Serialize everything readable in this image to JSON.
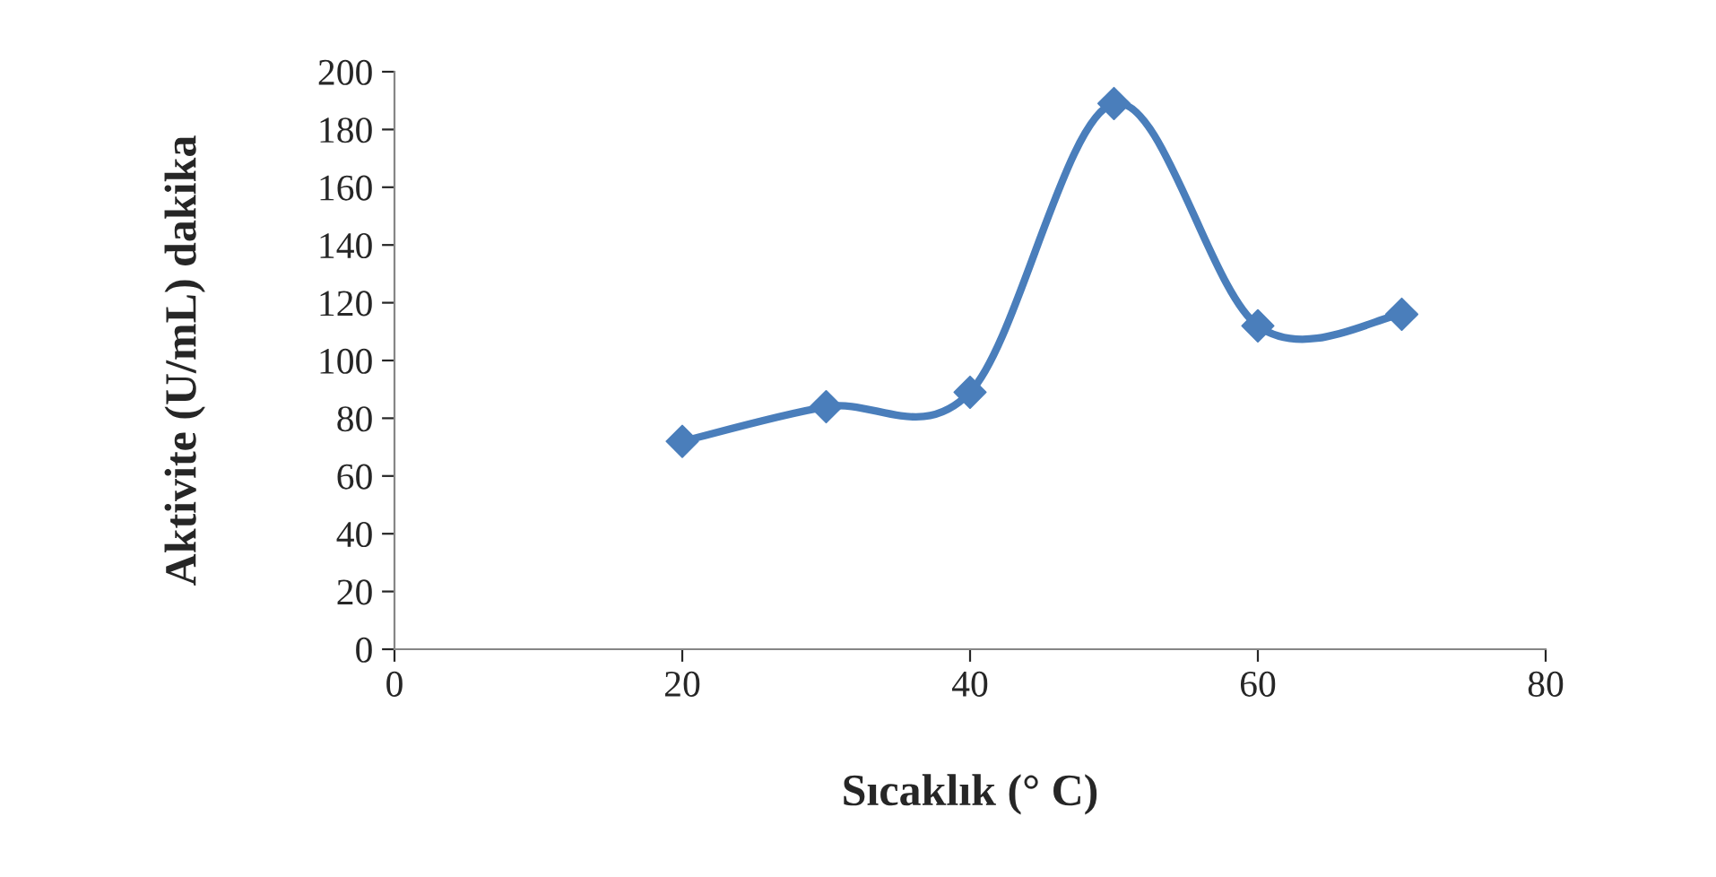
{
  "chart_data": {
    "type": "line",
    "xlabel": "Sıcaklık (° C)",
    "ylabel": "Aktivite (U/mL) dakika",
    "x": [
      20,
      30,
      40,
      50,
      60,
      70
    ],
    "series": [
      {
        "color": "#4a7ebb",
        "values": [
          72,
          84,
          89,
          189,
          112,
          116
        ]
      }
    ],
    "xlim": [
      0,
      80
    ],
    "xticks": [
      0,
      20,
      40,
      60,
      80
    ],
    "ylim": [
      0,
      200
    ],
    "yticks": [
      0,
      20,
      40,
      60,
      80,
      100,
      120,
      140,
      160,
      180,
      200
    ],
    "marker": "diamond",
    "line_style": "solid",
    "grid": false,
    "legend": false
  }
}
